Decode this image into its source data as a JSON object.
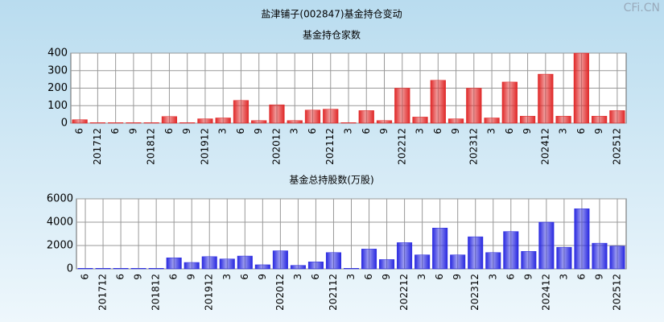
{
  "title": "盐津铺子(002847)基金持仓变动",
  "watermark": "CFi.CN",
  "chart_data": [
    {
      "type": "bar",
      "title": "基金持仓家数",
      "color": "#e02828",
      "categories": [
        "6",
        "201712",
        "6",
        "9",
        "201812",
        "6",
        "9",
        "201912",
        "3",
        "6",
        "9",
        "202012",
        "3",
        "6",
        "202112",
        "3",
        "6",
        "9",
        "202212",
        "3",
        "6",
        "9",
        "202312",
        "3",
        "6",
        "9",
        "202412",
        "3",
        "6",
        "9",
        "202512"
      ],
      "values": [
        20,
        3,
        3,
        3,
        3,
        38,
        3,
        25,
        30,
        130,
        15,
        105,
        15,
        75,
        80,
        3,
        72,
        15,
        200,
        35,
        245,
        25,
        200,
        30,
        235,
        40,
        280,
        40,
        400,
        40,
        72
      ],
      "ylim": [
        0,
        400
      ],
      "yticks": [
        0,
        100,
        200,
        300,
        400
      ],
      "grid": true
    },
    {
      "type": "bar",
      "title": "基金总持股数(万股)",
      "color": "#2828e0",
      "categories": [
        "6",
        "201712",
        "6",
        "9",
        "201812",
        "6",
        "9",
        "201912",
        "3",
        "6",
        "9",
        "202012",
        "3",
        "6",
        "202112",
        "3",
        "6",
        "9",
        "202212",
        "3",
        "6",
        "9",
        "202312",
        "3",
        "6",
        "9",
        "202412",
        "3",
        "6",
        "9",
        "202512"
      ],
      "values": [
        50,
        50,
        50,
        50,
        50,
        950,
        550,
        1050,
        850,
        1100,
        350,
        1550,
        300,
        600,
        1400,
        50,
        1700,
        800,
        2250,
        1200,
        3500,
        1200,
        2750,
        1400,
        3200,
        1500,
        4000,
        1850,
        5150,
        2200,
        1950
      ],
      "ylim": [
        0,
        6000
      ],
      "yticks": [
        0,
        2000,
        4000,
        6000
      ],
      "grid": true
    }
  ]
}
